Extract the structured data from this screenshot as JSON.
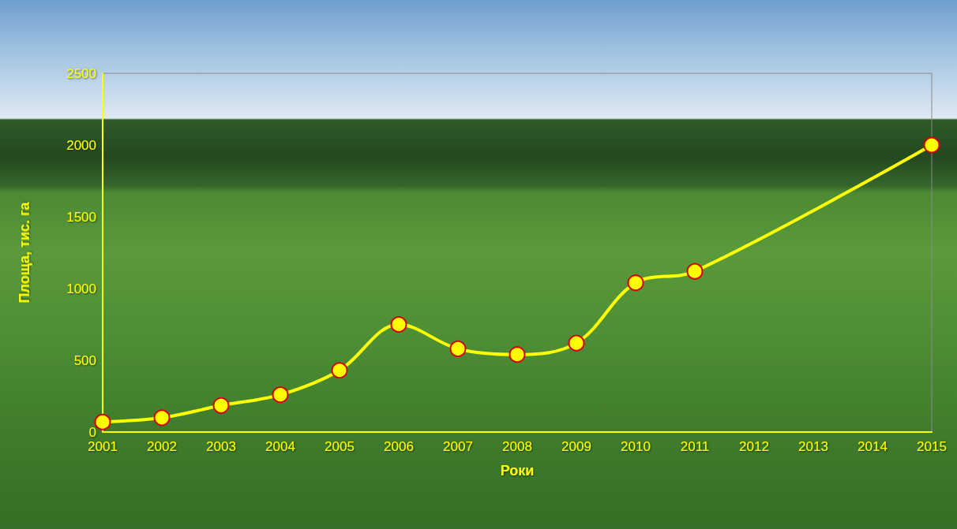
{
  "chart_data": {
    "type": "line",
    "x_label": "Роки",
    "y_label": "Площа, тис. га",
    "x": [
      2001,
      2002,
      2003,
      2004,
      2005,
      2006,
      2007,
      2008,
      2009,
      2010,
      2011,
      2015
    ],
    "values": [
      70,
      100,
      185,
      260,
      430,
      750,
      580,
      540,
      620,
      1040,
      1120,
      2000
    ],
    "color": "#ffff00",
    "marker": "circle",
    "xlim": [
      2001,
      2015
    ],
    "xticks": [
      2001,
      2002,
      2003,
      2004,
      2005,
      2006,
      2007,
      2008,
      2009,
      2010,
      2011,
      2012,
      2013,
      2014,
      2015
    ],
    "ylim": [
      0,
      2500
    ],
    "yticks": [
      0,
      500,
      1000,
      1500,
      2000,
      2500
    ],
    "grid": false
  }
}
